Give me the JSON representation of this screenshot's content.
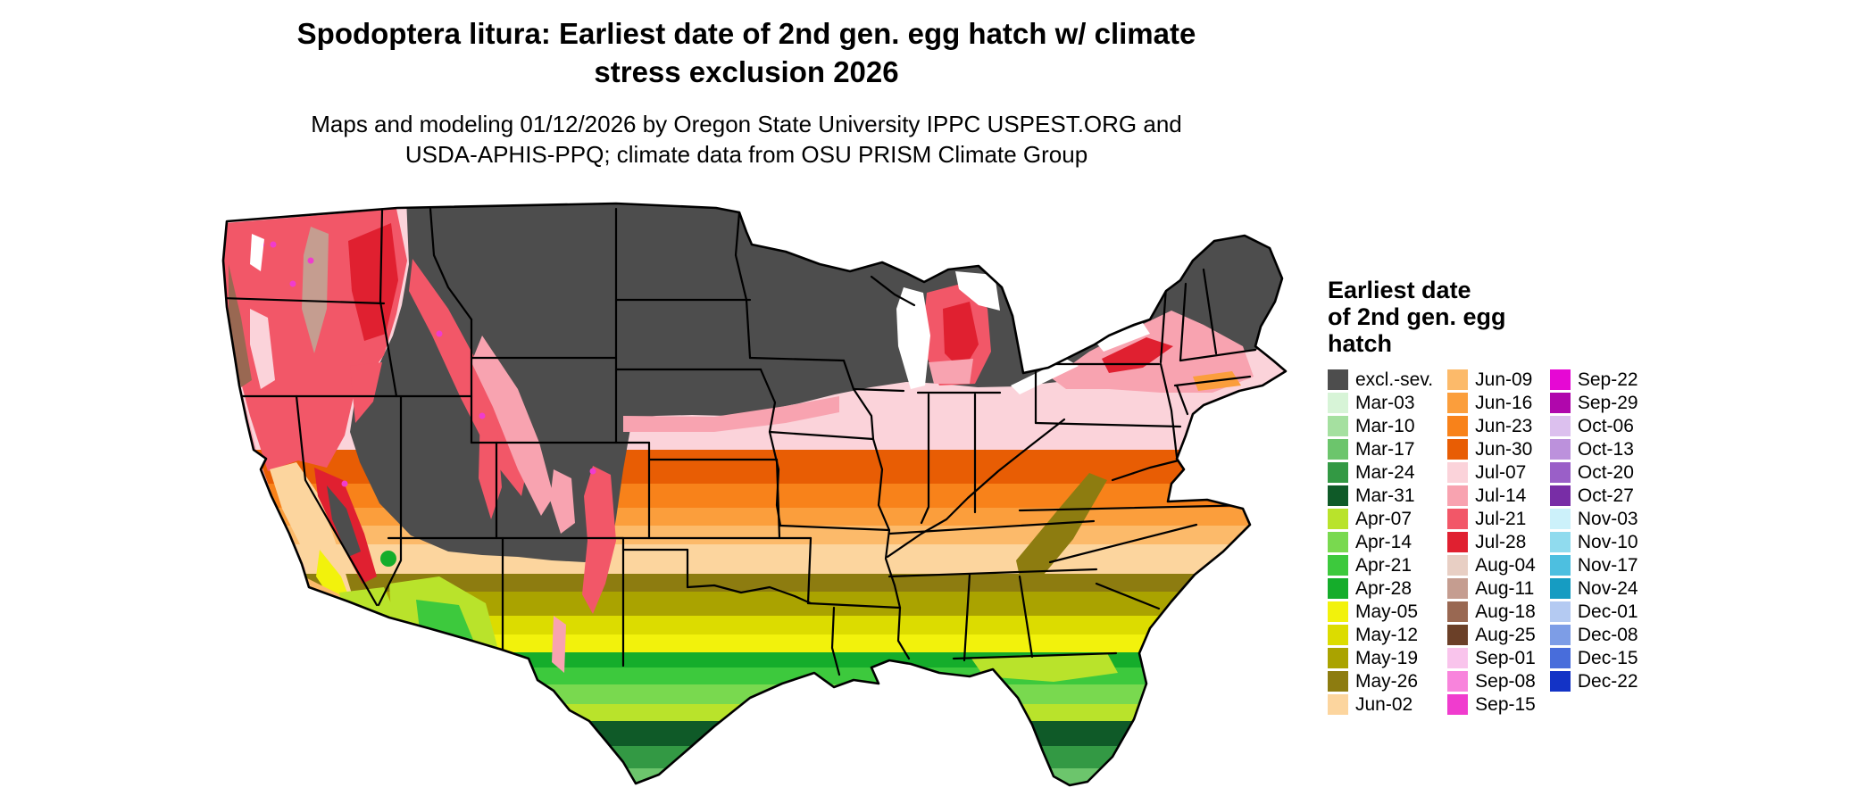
{
  "header": {
    "title_line1": "Spodoptera litura: Earliest date of 2nd gen. egg hatch w/ climate",
    "title_line2": "stress exclusion 2026",
    "subtitle_line1": "Maps and modeling 01/12/2026 by Oregon State University IPPC USPEST.ORG and",
    "subtitle_line2": "USDA-APHIS-PPQ; climate data from OSU PRISM Climate Group"
  },
  "legend": {
    "title_lines": [
      "Earliest date",
      "of 2nd gen. egg",
      "hatch"
    ],
    "columns": [
      [
        "excl.-sev.",
        "Mar-03",
        "Mar-10",
        "Mar-17",
        "Mar-24",
        "Mar-31",
        "Apr-07",
        "Apr-14",
        "Apr-21",
        "Apr-28",
        "May-05",
        "May-12",
        "May-19",
        "May-26",
        "Jun-02"
      ],
      [
        "Jun-09",
        "Jun-16",
        "Jun-23",
        "Jun-30",
        "Jul-07",
        "Jul-14",
        "Jul-21",
        "Jul-28",
        "Aug-04",
        "Aug-11",
        "Aug-18",
        "Aug-25",
        "Sep-01",
        "Sep-08",
        "Sep-15"
      ],
      [
        "Sep-22",
        "Sep-29",
        "Oct-06",
        "Oct-13",
        "Oct-20",
        "Oct-27",
        "Nov-03",
        "Nov-10",
        "Nov-17",
        "Nov-24",
        "Dec-01",
        "Dec-08",
        "Dec-15",
        "Dec-22"
      ]
    ]
  },
  "colors": {
    "excl.-sev.": "#4d4d4d",
    "Mar-03": "#d7f4d7",
    "Mar-10": "#a5e0a0",
    "Mar-17": "#6cc56c",
    "Mar-24": "#339944",
    "Mar-31": "#0f5a28",
    "Apr-07": "#b9e32b",
    "Apr-14": "#79d94f",
    "Apr-21": "#3dc93d",
    "Apr-28": "#15ad2b",
    "May-05": "#f2f20c",
    "May-12": "#dcdc00",
    "May-19": "#aaa300",
    "May-26": "#8d7c10",
    "Jun-02": "#fcd59e",
    "Jun-09": "#fcba6a",
    "Jun-16": "#fb9e3c",
    "Jun-23": "#f8821a",
    "Jun-30": "#e85d04",
    "Jul-07": "#fbd3da",
    "Jul-14": "#f8a3b0",
    "Jul-21": "#f25768",
    "Jul-28": "#e02030",
    "Aug-04": "#e8cfc4",
    "Aug-11": "#c59d90",
    "Aug-18": "#996852",
    "Aug-25": "#6b4028",
    "Sep-01": "#f9c4ec",
    "Sep-08": "#f884dc",
    "Sep-15": "#f03cce",
    "Sep-22": "#e608d4",
    "Sep-29": "#b007ac",
    "Oct-06": "#dcc0ee",
    "Oct-13": "#bc91dc",
    "Oct-20": "#9a5fc8",
    "Oct-27": "#782da6",
    "Nov-03": "#ccf1fa",
    "Nov-10": "#90dbee",
    "Nov-17": "#4dbfe0",
    "Nov-24": "#169cc2",
    "Dec-01": "#b4caf2",
    "Dec-08": "#7d9de6",
    "Dec-15": "#486ddb",
    "Dec-22": "#1333c6"
  }
}
